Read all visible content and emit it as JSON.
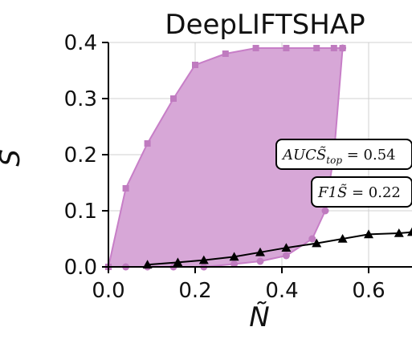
{
  "chart_data": {
    "type": "line",
    "title": "DeepLIFTSHAP",
    "xlabel": "Ñ",
    "ylabel": "S̃",
    "xlim": [
      0.0,
      0.7
    ],
    "ylim": [
      0.0,
      0.4
    ],
    "x_ticks": [
      "0.0",
      "0.2",
      "0.4",
      "0.6"
    ],
    "y_ticks": [
      "0.0",
      "0.1",
      "0.2",
      "0.3",
      "0.4"
    ],
    "grid": true,
    "series": [
      {
        "role": "region-upper-bound",
        "marker": "square",
        "color": "#bf7bbf",
        "x": [
          0.0,
          0.04,
          0.09,
          0.15,
          0.2,
          0.27,
          0.34,
          0.41,
          0.48,
          0.52,
          0.54
        ],
        "y": [
          0.0,
          0.14,
          0.22,
          0.3,
          0.36,
          0.38,
          0.39,
          0.39,
          0.39,
          0.39,
          0.39
        ]
      },
      {
        "role": "region-lower-bound",
        "marker": "circle",
        "color": "#bf7bbf",
        "x": [
          0.0,
          0.04,
          0.09,
          0.15,
          0.22,
          0.29,
          0.35,
          0.41,
          0.47,
          0.5,
          0.52,
          0.54
        ],
        "y": [
          0.0,
          0.0,
          0.0,
          0.0,
          0.0,
          0.005,
          0.01,
          0.02,
          0.05,
          0.1,
          0.2,
          0.39
        ]
      },
      {
        "role": "curve",
        "marker": "triangle",
        "color": "#000000",
        "x": [
          0.09,
          0.16,
          0.22,
          0.29,
          0.35,
          0.41,
          0.48,
          0.54,
          0.6,
          0.67,
          0.7
        ],
        "y": [
          0.004,
          0.008,
          0.012,
          0.018,
          0.026,
          0.034,
          0.042,
          0.05,
          0.058,
          0.06,
          0.062
        ]
      }
    ],
    "annotations": [
      {
        "text_main": "AUCS̃",
        "text_sub": "top",
        "text_rest": " = 0.54"
      },
      {
        "text_main": "F1S̃",
        "text_sub": "",
        "text_rest": " = 0.22"
      }
    ],
    "colors": {
      "region_fill": "#d7a7d7",
      "region_edge": "#c77ec7",
      "curve": "#000000",
      "grid": "#d0d0d0"
    }
  }
}
